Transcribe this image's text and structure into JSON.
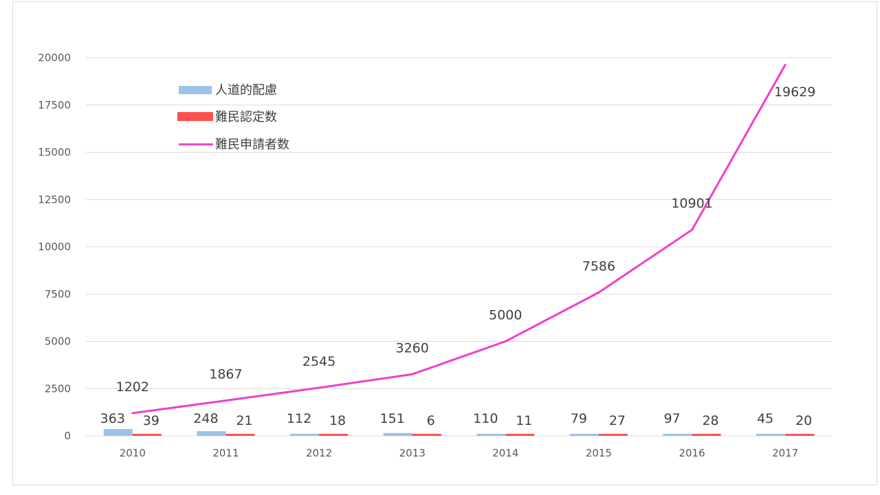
{
  "chart_data": {
    "type": "bar",
    "categories": [
      "2010",
      "2011",
      "2012",
      "2013",
      "2014",
      "2015",
      "2016",
      "2017"
    ],
    "series": [
      {
        "name": "人道的配慮",
        "type": "bar",
        "color": "#9dc3e6",
        "values": [
          363,
          248,
          112,
          151,
          110,
          79,
          97,
          45
        ]
      },
      {
        "name": "難民認定数",
        "type": "bar",
        "color": "#ff5050",
        "values": [
          39,
          21,
          18,
          6,
          11,
          27,
          28,
          20
        ]
      },
      {
        "name": "難民申請者数",
        "type": "line",
        "color": "#ee3fd0",
        "values": [
          1202,
          1867,
          2545,
          3260,
          5000,
          7586,
          10901,
          19629
        ]
      }
    ],
    "ylim": [
      0,
      20000
    ],
    "yticks": [
      "0",
      "2500",
      "5000",
      "7500",
      "10000",
      "12500",
      "15000",
      "17500",
      "20000"
    ],
    "grid": true,
    "legend_position": "top-left"
  }
}
